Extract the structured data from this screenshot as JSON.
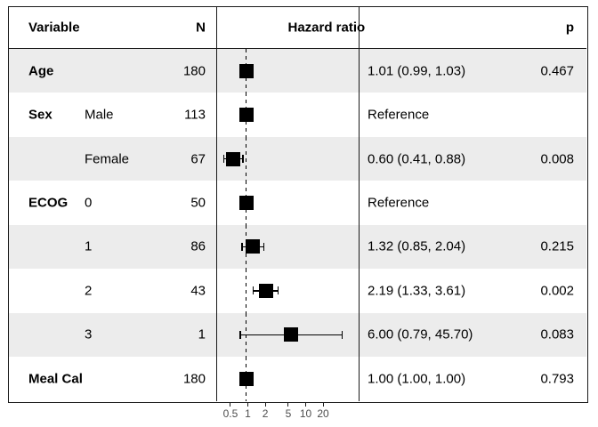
{
  "header": {
    "variable": "Variable",
    "n": "N",
    "hazard_ratio": "Hazard ratio",
    "p": "p"
  },
  "colors": {
    "background": "#ffffff",
    "row_shade": "#ececec",
    "border": "#1a1a1a",
    "marker": "#000000",
    "axis_label": "#4d4d4d"
  },
  "chart_data": {
    "type": "forest",
    "x_scale": "log",
    "x_ticks": [
      0.5,
      1,
      2,
      5,
      10,
      20
    ],
    "x_tick_labels": [
      "0.5",
      "1",
      "2",
      "5",
      "10",
      "20"
    ],
    "reference_line": 1,
    "columns": [
      "Variable",
      "N",
      "Hazard ratio",
      "p"
    ],
    "rows": [
      {
        "variable": "Age",
        "level": "",
        "n": "180",
        "hr": 1.01,
        "ci_low": 0.99,
        "ci_high": 1.03,
        "estimate": "1.01 (0.99, 1.03)",
        "p": "0.467"
      },
      {
        "variable": "Sex",
        "level": "Male",
        "n": "113",
        "hr": 1.0,
        "ci_low": null,
        "ci_high": null,
        "estimate": "Reference",
        "p": ""
      },
      {
        "variable": "",
        "level": "Female",
        "n": "67",
        "hr": 0.6,
        "ci_low": 0.41,
        "ci_high": 0.88,
        "estimate": "0.60 (0.41, 0.88)",
        "p": "0.008"
      },
      {
        "variable": "ECOG",
        "level": "0",
        "n": "50",
        "hr": 1.0,
        "ci_low": null,
        "ci_high": null,
        "estimate": "Reference",
        "p": ""
      },
      {
        "variable": "",
        "level": "1",
        "n": "86",
        "hr": 1.32,
        "ci_low": 0.85,
        "ci_high": 2.04,
        "estimate": "1.32 (0.85, 2.04)",
        "p": "0.215"
      },
      {
        "variable": "",
        "level": "2",
        "n": "43",
        "hr": 2.19,
        "ci_low": 1.33,
        "ci_high": 3.61,
        "estimate": "2.19 (1.33, 3.61)",
        "p": "0.002"
      },
      {
        "variable": "",
        "level": "3",
        "n": "1",
        "hr": 6.0,
        "ci_low": 0.79,
        "ci_high": 45.7,
        "estimate": "6.00 (0.79, 45.70)",
        "p": "0.083"
      },
      {
        "variable": "Meal Cal",
        "level": "",
        "n": "180",
        "hr": 1.0,
        "ci_low": 1.0,
        "ci_high": 1.0,
        "estimate": "1.00 (1.00, 1.00)",
        "p": "0.793"
      }
    ]
  }
}
